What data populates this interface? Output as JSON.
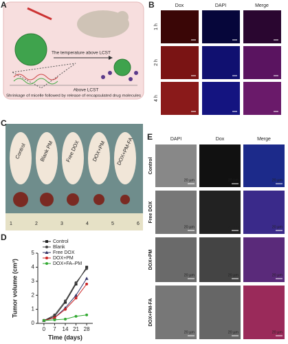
{
  "panel_a": {
    "label": "A",
    "arrow_text": "The temperature above LCST",
    "lower_text": "Above LCST",
    "caption": "Shrinkage of micelle followed by release of encapsulated drug molecules"
  },
  "panel_b": {
    "label": "B",
    "columns": [
      "Dox",
      "DAPI",
      "Merge"
    ],
    "rows": [
      "1 h",
      "2 h",
      "4 h"
    ]
  },
  "panel_c": {
    "label": "C",
    "groups": [
      "Control",
      "Blank PM",
      "Free DOX",
      "DOX+PM",
      "DOX+PM-FA"
    ],
    "ruler": [
      "1",
      "2",
      "3",
      "4",
      "5",
      "6"
    ]
  },
  "panel_e": {
    "label": "E",
    "columns": [
      "DAPI",
      "Dox",
      "Merge"
    ],
    "rows": [
      "Control",
      "Free DOX",
      "DOX+PM",
      "DOX+PM-FA"
    ],
    "scale_bar": "20 µm"
  },
  "chart_data": {
    "type": "line",
    "panel_label": "D",
    "xlabel": "Time (days)",
    "ylabel": "Tumor volume (cm³)",
    "x": [
      0,
      7,
      14,
      21,
      28
    ],
    "series": [
      {
        "name": "Control",
        "color": "#222222",
        "marker": "square",
        "values": [
          0.2,
          0.5,
          1.5,
          2.8,
          4.0
        ]
      },
      {
        "name": "Blank",
        "color": "#444444",
        "marker": "circle",
        "values": [
          0.2,
          0.6,
          1.6,
          2.9,
          3.9
        ]
      },
      {
        "name": "Free DOX",
        "color": "#333366",
        "marker": "triangle",
        "values": [
          0.2,
          0.4,
          1.1,
          2.0,
          3.2
        ]
      },
      {
        "name": "DOX+PM",
        "color": "#cc2222",
        "marker": "circle",
        "values": [
          0.2,
          0.4,
          1.0,
          1.8,
          2.8
        ]
      },
      {
        "name": "DOX+FA–PM",
        "color": "#33aa33",
        "marker": "circle",
        "values": [
          0.2,
          0.25,
          0.3,
          0.5,
          0.6
        ]
      }
    ],
    "xlim": [
      -4,
      32
    ],
    "ylim": [
      0,
      5
    ],
    "xticks": [
      0,
      7,
      14,
      21,
      28
    ],
    "yticks": [
      0,
      1,
      2,
      3,
      4,
      5
    ]
  }
}
